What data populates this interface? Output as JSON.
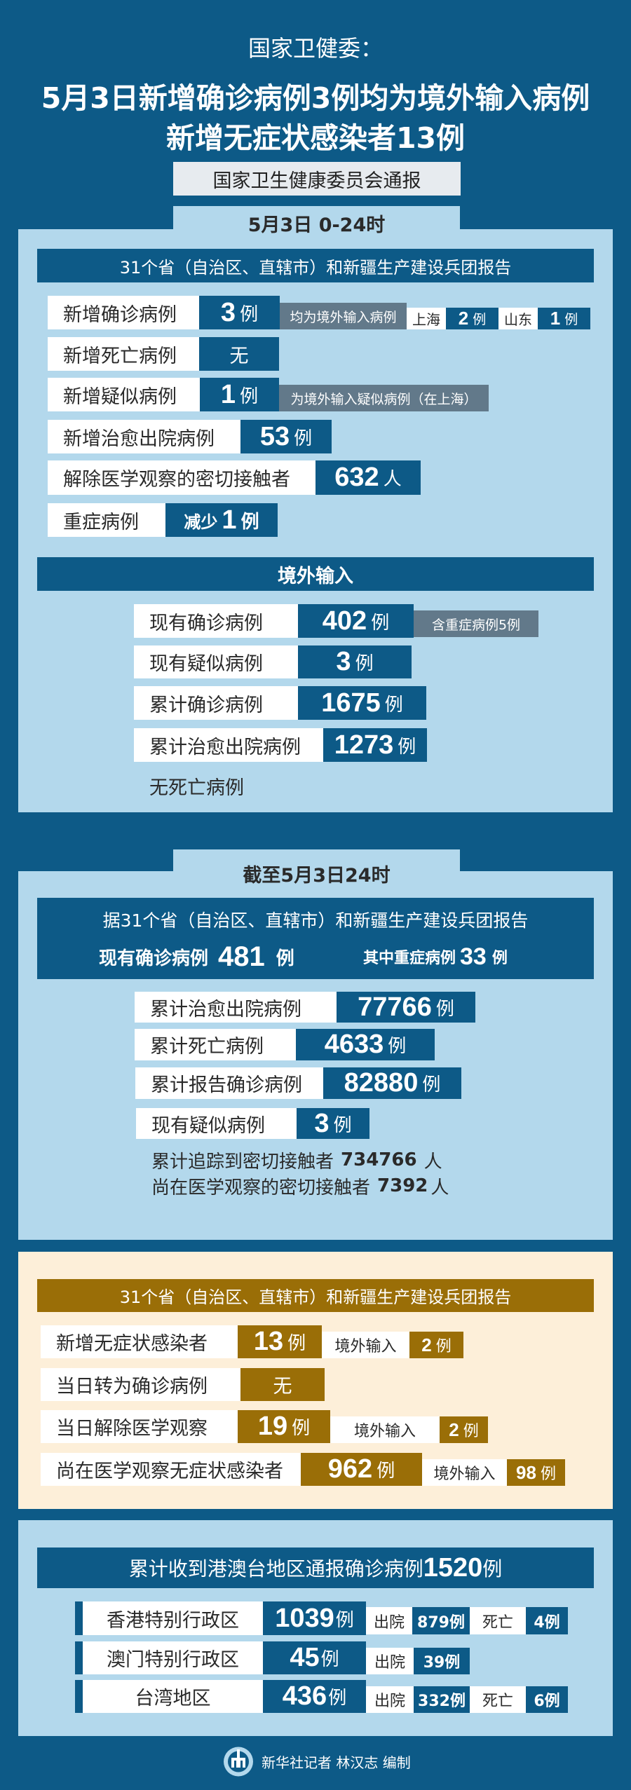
{
  "header": {
    "source": "国家卫健委：",
    "headline1": "5月3日新增确诊病例3例均为境外输入病例",
    "headline2": "新增无症状感染者13例",
    "notice": "国家卫生健康委员会通报"
  },
  "daily": {
    "tab": "5月3日 0-24时",
    "bar": "31个省（自治区、直辖市）和新疆生产建设兵团报告",
    "rows": [
      {
        "label": "新增确诊病例",
        "value": "3",
        "unit": "例",
        "note": "均为境外输入病例",
        "sub": [
          {
            "place": "上海",
            "value": "2",
            "unit": "例"
          },
          {
            "place": "山东",
            "value": "1",
            "unit": "例"
          }
        ]
      },
      {
        "label": "新增死亡病例",
        "value": "无"
      },
      {
        "label": "新增疑似病例",
        "value": "1",
        "unit": "例",
        "note": "为境外输入疑似病例（在上海）"
      },
      {
        "label": "新增治愈出院病例",
        "value": "53",
        "unit": "例"
      },
      {
        "label": "解除医学观察的密切接触者",
        "value": "632",
        "unit": "人"
      },
      {
        "label": "重症病例",
        "prefix": "减少",
        "value": "1",
        "unit": "例"
      }
    ],
    "imported": {
      "bar": "境外输入",
      "rows": [
        {
          "label": "现有确诊病例",
          "value": "402",
          "unit": "例",
          "note": "含重症病例5例"
        },
        {
          "label": "现有疑似病例",
          "value": "3",
          "unit": "例"
        },
        {
          "label": "累计确诊病例",
          "value": "1675",
          "unit": "例"
        },
        {
          "label": "累计治愈出院病例",
          "value": "1273",
          "unit": "例"
        }
      ],
      "footnote": "无死亡病例"
    }
  },
  "cumulative": {
    "tab": "截至5月3日24时",
    "intro": "据31个省（自治区、直辖市）和新疆生产建设兵团报告",
    "current_label": "现有确诊病例",
    "current_value": "481",
    "current_unit": "例",
    "severe_label": "其中重症病例",
    "severe_value": "33",
    "severe_unit": "例",
    "rows": [
      {
        "label": "累计治愈出院病例",
        "value": "77766",
        "unit": "例"
      },
      {
        "label": "累计死亡病例",
        "value": "4633",
        "unit": "例"
      },
      {
        "label": "累计报告确诊病例",
        "value": "82880",
        "unit": "例"
      },
      {
        "label": "现有疑似病例",
        "value": "3",
        "unit": "例"
      }
    ],
    "contacts_traced_label": "累计追踪到密切接触者",
    "contacts_traced": "734766",
    "contacts_traced_unit": "人",
    "contacts_observed_label": "尚在医学观察的密切接触者",
    "contacts_observed": "7392",
    "contacts_observed_unit": "人"
  },
  "asymptomatic": {
    "bar": "31个省（自治区、直辖市）和新疆生产建设兵团报告",
    "rows": [
      {
        "label": "新增无症状感染者",
        "value": "13",
        "unit": "例",
        "sub_label": "境外输入",
        "sub_value": "2",
        "sub_unit": "例"
      },
      {
        "label": "当日转为确诊病例",
        "value": "无"
      },
      {
        "label": "当日解除医学观察",
        "value": "19",
        "unit": "例",
        "sub_label": "境外输入",
        "sub_value": "2",
        "sub_unit": "例"
      },
      {
        "label": "尚在医学观察无症状感染者",
        "value": "962",
        "unit": "例",
        "sub_label": "境外输入",
        "sub_value": "98",
        "sub_unit": "例"
      }
    ]
  },
  "hmt": {
    "bar_text": "累计收到港澳台地区通报确诊病例",
    "bar_value": "1520",
    "bar_unit": "例",
    "rows": [
      {
        "region": "香港特别行政区",
        "value": "1039",
        "unit": "例",
        "discharged_label": "出院",
        "discharged": "879例",
        "deaths_label": "死亡",
        "deaths": "4例"
      },
      {
        "region": "澳门特别行政区",
        "value": "45",
        "unit": "例",
        "discharged_label": "出院",
        "discharged": "39例"
      },
      {
        "region": "台湾地区",
        "value": "436",
        "unit": "例",
        "discharged_label": "出院",
        "discharged": "332例",
        "deaths_label": "死亡",
        "deaths": "6例"
      }
    ]
  },
  "footer": {
    "credit": "新华社记者 林汉志 编制",
    "logo_text": "XINHUA"
  },
  "colors": {
    "dark_blue": "#0d5a87",
    "light_blue": "#b3d8ec",
    "gray": "#62798a",
    "gold": "#9a6e07",
    "cream": "#fdefd9"
  }
}
